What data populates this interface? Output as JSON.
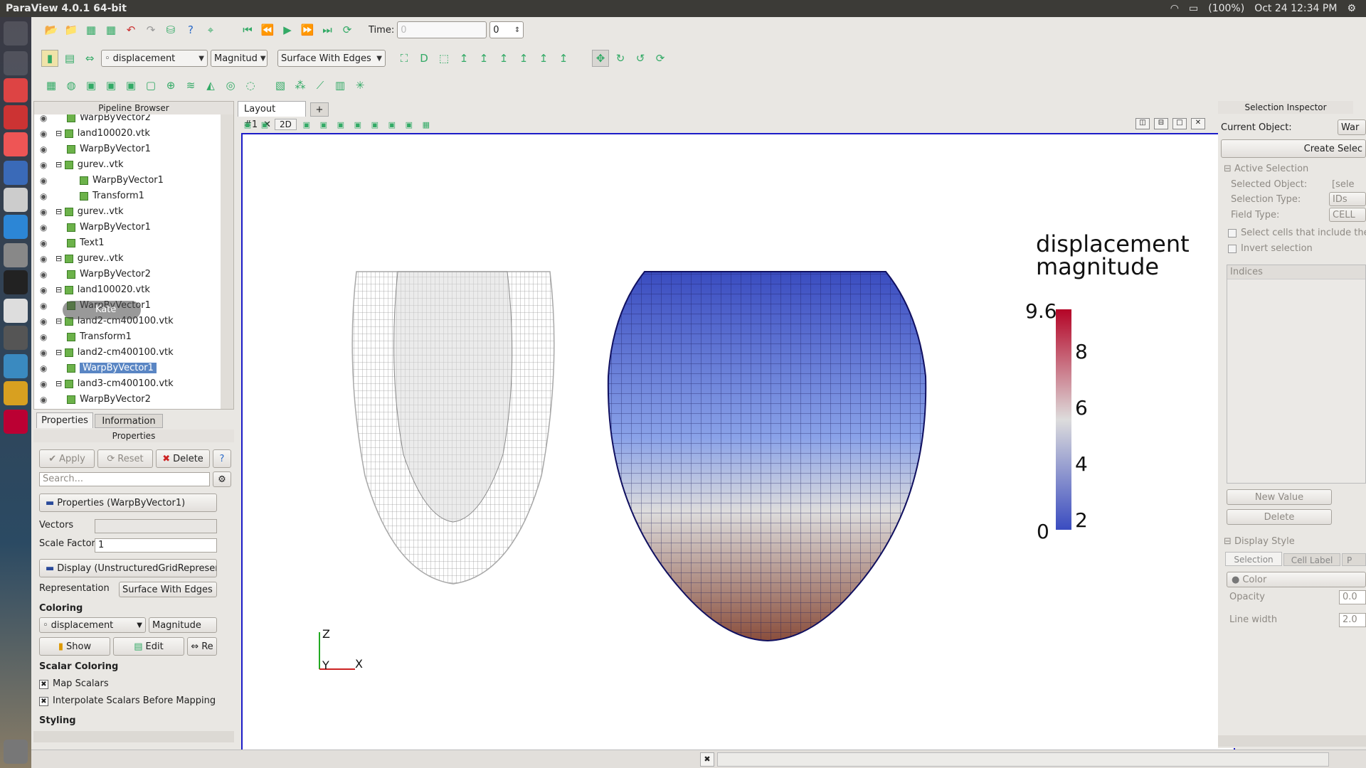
{
  "window": {
    "title": "ParaView 4.0.1 64-bit"
  },
  "system": {
    "battery": "(100%)",
    "datetime": "Oct 24 12:34 PM"
  },
  "toolbar": {
    "time_label": "Time:",
    "time_value": "0",
    "time_index": "0",
    "color_array": "displacement",
    "component": "Magnitud",
    "representation": "Surface With Edges"
  },
  "pipeline": {
    "header": "Pipeline Browser",
    "items": [
      {
        "label": "WarpByVector2",
        "indent": 1
      },
      {
        "label": "land100020.vtk",
        "indent": 0
      },
      {
        "label": "WarpByVector1",
        "indent": 1
      },
      {
        "label": "gurev..vtk",
        "indent": 0
      },
      {
        "label": "WarpByVector1",
        "indent": 2
      },
      {
        "label": "Transform1",
        "indent": 2
      },
      {
        "label": "gurev..vtk",
        "indent": 0
      },
      {
        "label": "WarpByVector1",
        "indent": 1
      },
      {
        "label": "Text1",
        "indent": 1
      },
      {
        "label": "gurev..vtk",
        "indent": 0
      },
      {
        "label": "WarpByVector2",
        "indent": 1
      },
      {
        "label": "land100020.vtk",
        "indent": 0
      },
      {
        "label": "WarpByVector1",
        "indent": 1
      },
      {
        "label": "land2-cm400100.vtk",
        "indent": 0
      },
      {
        "label": "Transform1",
        "indent": 1
      },
      {
        "label": "land2-cm400100.vtk",
        "indent": 0
      },
      {
        "label": "WarpByVector1",
        "indent": 1,
        "selected": true
      },
      {
        "label": "land3-cm400100.vtk",
        "indent": 0
      },
      {
        "label": "WarpByVector2",
        "indent": 1
      }
    ],
    "tooltip": "Kate"
  },
  "properties": {
    "tabs": [
      "Properties",
      "Information"
    ],
    "header": "Properties",
    "apply": "Apply",
    "reset": "Reset",
    "delete": "Delete",
    "help": "?",
    "search_placeholder": "Search...",
    "section_props": "Properties (WarpByVector1)",
    "vectors_label": "Vectors",
    "scale_factor_label": "Scale Factor",
    "scale_factor_value": "1",
    "section_display": "Display (UnstructuredGridRepresen",
    "representation_label": "Representation",
    "representation_value": "Surface With Edges",
    "coloring_label": "Coloring",
    "coloring_array": "displacement",
    "coloring_component": "Magnitude",
    "show": "Show",
    "edit": "Edit",
    "rescale": "Re",
    "scalar_coloring": "Scalar Coloring",
    "map_scalars": "Map Scalars",
    "interpolate": "Interpolate Scalars Before Mapping",
    "styling": "Styling"
  },
  "layout": {
    "tab": "Layout #1",
    "plus": "+",
    "mode_2d": "2D"
  },
  "scene": {
    "legend_title_1": "displacement",
    "legend_title_2": "magnitude",
    "legend_max": "9.6",
    "legend_ticks": [
      "8",
      "6",
      "4",
      "2"
    ],
    "legend_min": "0",
    "axis_z": "Z",
    "axis_y": "Y",
    "axis_x": "X",
    "colors": {
      "low": "#3a4cc0",
      "mid": "#dddcdc",
      "high": "#b40426",
      "wire": "#9a9a9a",
      "edges": "#101060"
    }
  },
  "selection": {
    "header": "Selection Inspector",
    "current_object_label": "Current Object:",
    "current_object_value": "War",
    "create_selection": "Create Selec",
    "active_selection": "Active Selection",
    "selected_object_label": "Selected Object:",
    "selected_object_value": "[sele",
    "selection_type_label": "Selection Type:",
    "selection_type_value": "IDs",
    "field_type_label": "Field Type:",
    "field_type_value": "CELL",
    "select_cells": "Select cells that include the",
    "invert": "Invert selection",
    "indices": "Indices",
    "new_value": "New Value",
    "delete": "Delete",
    "display_style": "Display Style",
    "ds_tabs": [
      "Selection",
      "Cell Label",
      "P"
    ],
    "color_label": "Color",
    "opacity_label": "Opacity",
    "opacity_value": "0.0",
    "line_width_label": "Line width",
    "line_width_value": "2.0"
  }
}
